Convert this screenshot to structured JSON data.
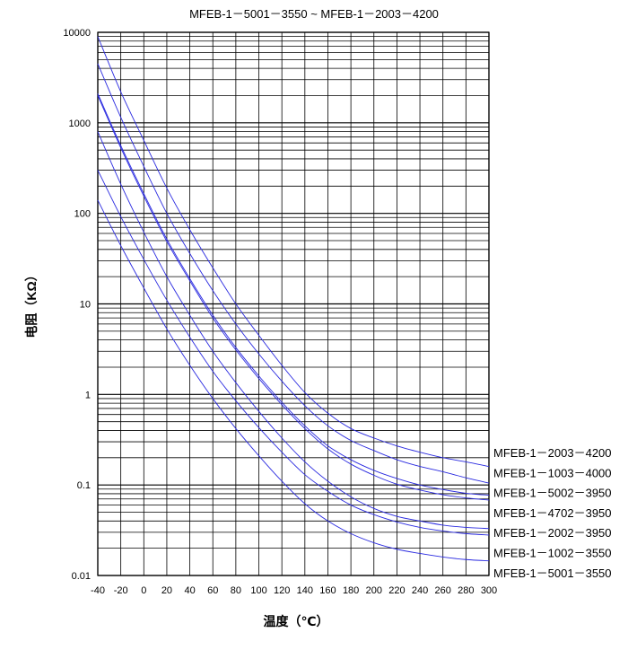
{
  "chart_data": {
    "type": "line",
    "title": "MFEB-1－5001－3550 ~ MFEB-1－2003－4200",
    "xlabel": "温度（℃）",
    "ylabel": "电阻（KΩ）",
    "xlim": [
      -40,
      300
    ],
    "ylim": [
      0.01,
      10000
    ],
    "y_scale": "log",
    "grid": true,
    "x_ticks": [
      "-40",
      "-20",
      "0",
      "20",
      "40",
      "60",
      "80",
      "100",
      "120",
      "140",
      "160",
      "180",
      "200",
      "220",
      "240",
      "260",
      "280",
      "300"
    ],
    "y_ticks": [
      "10000",
      "1000",
      "100",
      "10",
      "1",
      "0.1",
      "0.01"
    ],
    "legend_position": "right",
    "colors": {
      "series": "#2a2ae0",
      "grid": "#000000"
    },
    "series": [
      {
        "name": "MFEB-1－2003－4200",
        "x": [
          -40,
          -20,
          0,
          20,
          40,
          60,
          80,
          100,
          120,
          140,
          160,
          180,
          200,
          220,
          240,
          260,
          280,
          300
        ],
        "y": [
          9000,
          2200,
          640,
          190,
          66,
          25,
          10,
          4.5,
          2.1,
          1.05,
          0.62,
          0.42,
          0.33,
          0.27,
          0.23,
          0.2,
          0.18,
          0.16
        ]
      },
      {
        "name": "MFEB-1－1003－4000",
        "x": [
          -40,
          -20,
          0,
          20,
          40,
          60,
          80,
          100,
          120,
          140,
          160,
          180,
          200,
          220,
          240,
          260,
          280,
          300
        ],
        "y": [
          4500,
          1150,
          330,
          100,
          36,
          14,
          6,
          2.8,
          1.4,
          0.75,
          0.45,
          0.31,
          0.24,
          0.19,
          0.16,
          0.14,
          0.12,
          0.105
        ]
      },
      {
        "name": "MFEB-1－5002－3950",
        "x": [
          -40,
          -20,
          0,
          20,
          40,
          60,
          80,
          100,
          120,
          140,
          160,
          180,
          200,
          220,
          240,
          260,
          280,
          300
        ],
        "y": [
          2100,
          560,
          165,
          52,
          19,
          7.5,
          3.3,
          1.6,
          0.82,
          0.45,
          0.27,
          0.19,
          0.145,
          0.118,
          0.1,
          0.089,
          0.081,
          0.077
        ]
      },
      {
        "name": "MFEB-1－4702－3950",
        "x": [
          -40,
          -20,
          0,
          20,
          40,
          60,
          80,
          100,
          120,
          140,
          160,
          180,
          200,
          220,
          240,
          260,
          280,
          300
        ],
        "y": [
          2000,
          530,
          155,
          49,
          18,
          7,
          3.1,
          1.5,
          0.77,
          0.42,
          0.25,
          0.17,
          0.128,
          0.102,
          0.088,
          0.078,
          0.072,
          0.068
        ]
      },
      {
        "name": "MFEB-1－2002－3950",
        "x": [
          -40,
          -20,
          0,
          20,
          40,
          60,
          80,
          100,
          120,
          140,
          160,
          180,
          200,
          220,
          240,
          260,
          280,
          300
        ],
        "y": [
          800,
          210,
          62,
          20,
          7.5,
          3,
          1.35,
          0.65,
          0.33,
          0.18,
          0.11,
          0.074,
          0.055,
          0.045,
          0.04,
          0.036,
          0.034,
          0.033
        ]
      },
      {
        "name": "MFEB-1－1002－3550",
        "x": [
          -40,
          -20,
          0,
          20,
          40,
          60,
          80,
          100,
          120,
          140,
          160,
          180,
          200,
          220,
          240,
          260,
          280,
          300
        ],
        "y": [
          300,
          92,
          31,
          11,
          4.3,
          1.8,
          0.85,
          0.43,
          0.23,
          0.13,
          0.085,
          0.06,
          0.047,
          0.039,
          0.034,
          0.031,
          0.029,
          0.028
        ]
      },
      {
        "name": "MFEB-1－5001－3550",
        "x": [
          -40,
          -20,
          0,
          20,
          40,
          60,
          80,
          100,
          120,
          140,
          160,
          180,
          200,
          220,
          240,
          260,
          280,
          300
        ],
        "y": [
          140,
          44,
          15,
          5.3,
          2.1,
          0.9,
          0.42,
          0.21,
          0.11,
          0.062,
          0.04,
          0.029,
          0.023,
          0.0195,
          0.0175,
          0.016,
          0.015,
          0.0145
        ]
      }
    ]
  }
}
